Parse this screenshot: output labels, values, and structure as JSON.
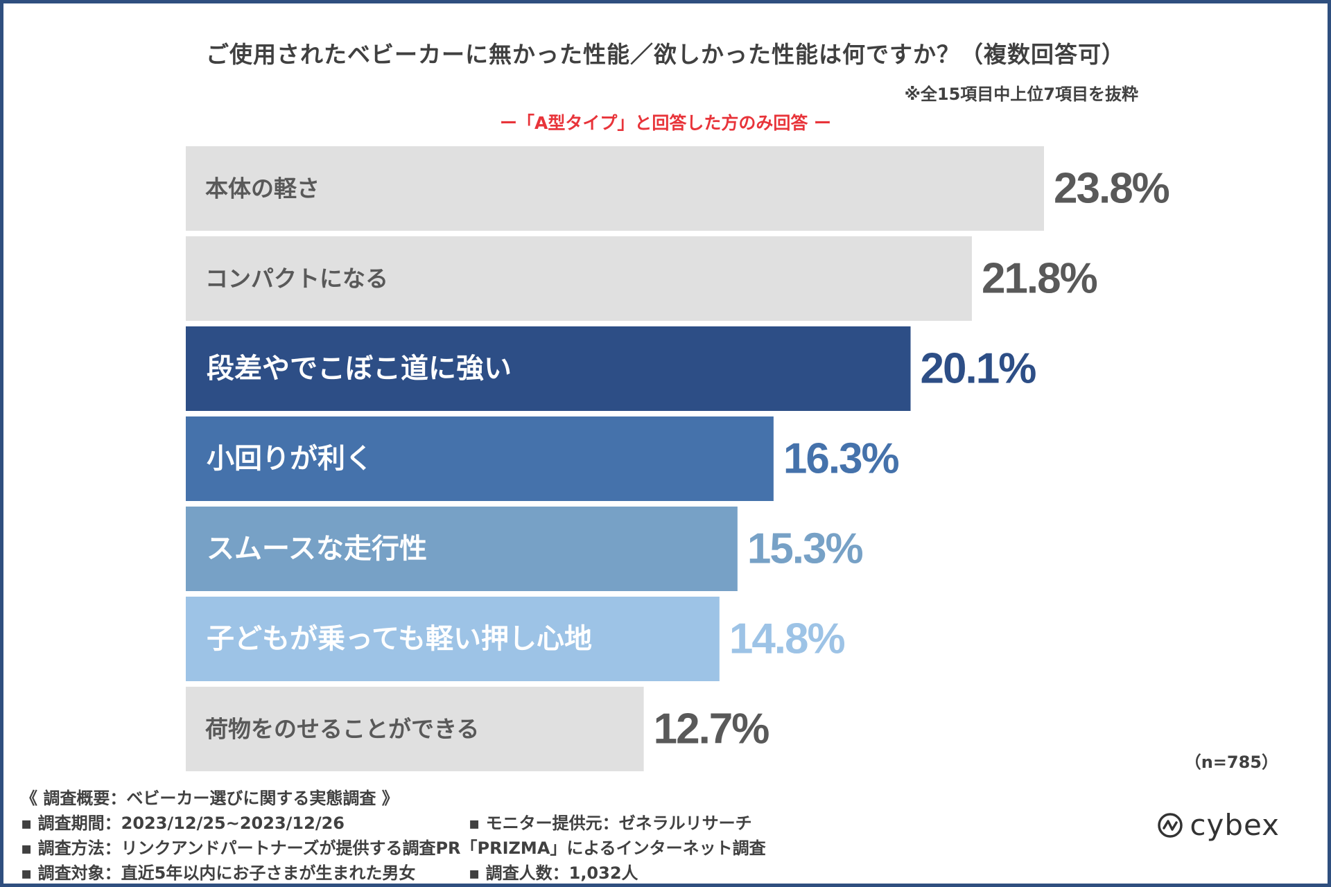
{
  "header": {
    "title": "ご使用されたベビーカーに無かった性能／欲しかった性能は何ですか？（複数回答可）",
    "note": "※全15項目中上位7項目を抜粋",
    "subtitle": "ー「A型タイプ」と回答した方のみ回答 ー"
  },
  "chart_data": {
    "type": "bar",
    "orientation": "horizontal",
    "title": "ご使用されたベビーカーに無かった性能／欲しかった性能は何ですか？（複数回答可）",
    "unit": "%",
    "categories": [
      "本体の軽さ",
      "コンパクトになる",
      "段差やでこぼこ道に強い",
      "小回りが利く",
      "スムースな走行性",
      "子どもが乗っても軽い押し心地",
      "荷物をのせることができる"
    ],
    "values": [
      23.8,
      21.8,
      20.1,
      16.3,
      15.3,
      14.8,
      12.7
    ],
    "value_labels": [
      "23.8%",
      "21.8%",
      "20.1%",
      "16.3%",
      "15.3%",
      "14.8%",
      "12.7%"
    ],
    "bar_colors": [
      "#e0e0e0",
      "#e0e0e0",
      "#2d4e86",
      "#4572ab",
      "#77a1c6",
      "#9dc3e6",
      "#e0e0e0"
    ],
    "label_colors": [
      "#595959",
      "#595959",
      "#ffffff",
      "#ffffff",
      "#ffffff",
      "#ffffff",
      "#595959"
    ],
    "value_colors": [
      "#595959",
      "#595959",
      "#2d4e86",
      "#4572ab",
      "#77a1c6",
      "#9dc3e6",
      "#595959"
    ],
    "highlighted": [
      false,
      false,
      true,
      true,
      true,
      true,
      false
    ],
    "xlim": [
      0,
      23.8
    ]
  },
  "sample_size": "（n=785）",
  "survey": {
    "heading": "《 調査概要：ベビーカー選びに関する実態調査 》",
    "period": "▪ 調査期間：2023/12/25~2023/12/26",
    "provider": "▪ モニター提供元：ゼネラルリサーチ",
    "method": "▪ 調査方法：リンクアンドパートナーズが提供する調査PR「PRIZMA」によるインターネット調査",
    "target": "▪ 調査対象：直近5年以内にお子さまが生まれた男女",
    "count": "▪ 調査人数：1,032人"
  },
  "logo": {
    "icon": "cybex-logo-icon",
    "text": "cybex"
  }
}
